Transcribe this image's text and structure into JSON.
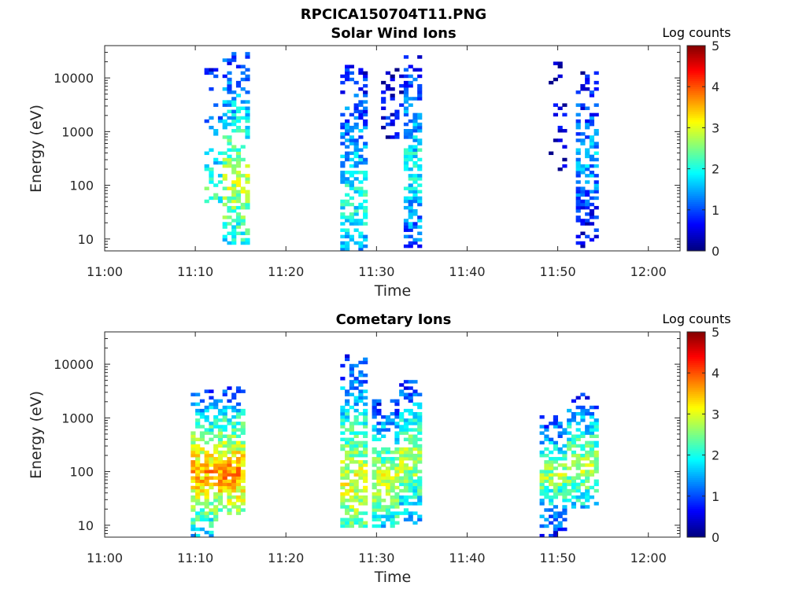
{
  "figure": {
    "title": "RPCICA150704T11.PNG"
  },
  "colorbar": {
    "range": [
      0,
      5
    ],
    "colormap": "jet"
  },
  "chart_data": [
    {
      "type": "heatmap",
      "title": "Solar Wind Ions",
      "xlabel": "Time",
      "ylabel": "Energy (eV)",
      "colorbar_title": "Log counts",
      "colorbar_ticks": [
        "0",
        "1",
        "2",
        "3",
        "4",
        "5"
      ],
      "x_ticks": [
        "11:00",
        "11:10",
        "11:20",
        "11:30",
        "11:40",
        "11:50",
        "12:00"
      ],
      "x_tick_minutes": [
        0,
        10,
        20,
        30,
        40,
        50,
        60
      ],
      "xlim_minutes": [
        0,
        63.5
      ],
      "y_scale": "log",
      "y_ticks": [
        "10",
        "100",
        "1000",
        "10000"
      ],
      "y_tick_values": [
        10,
        100,
        1000,
        10000
      ],
      "ylim": [
        6,
        40000
      ],
      "bursts": [
        {
          "t_start": 11.0,
          "t_end": 13.0,
          "e_min": 40,
          "e_max": 15000,
          "peak_e": 80,
          "peak_log": 2.2,
          "density": 0.35
        },
        {
          "t_start": 13.0,
          "t_end": 16.0,
          "e_min": 7,
          "e_max": 30000,
          "peak_e": 100,
          "peak_log": 2.8,
          "density": 0.6
        },
        {
          "t_start": 26.0,
          "t_end": 29.0,
          "e_min": 6,
          "e_max": 20000,
          "peak_e": 50,
          "peak_log": 2.0,
          "density": 0.6
        },
        {
          "t_start": 30.5,
          "t_end": 33.0,
          "e_min": 500,
          "e_max": 15000,
          "peak_e": 2000,
          "peak_log": 0.6,
          "density": 0.35
        },
        {
          "t_start": 33.0,
          "t_end": 35.0,
          "e_min": 6,
          "e_max": 25000,
          "peak_e": 200,
          "peak_log": 2.0,
          "density": 0.65
        },
        {
          "t_start": 49.0,
          "t_end": 51.0,
          "e_min": 70,
          "e_max": 20000,
          "peak_e": 2000,
          "peak_log": 0.5,
          "density": 0.2
        },
        {
          "t_start": 52.0,
          "t_end": 54.5,
          "e_min": 6,
          "e_max": 15000,
          "peak_e": 300,
          "peak_log": 1.5,
          "density": 0.6
        }
      ]
    },
    {
      "type": "heatmap",
      "title": "Cometary Ions",
      "xlabel": "Time",
      "ylabel": "Energy (eV)",
      "colorbar_title": "Log counts",
      "colorbar_ticks": [
        "0",
        "1",
        "2",
        "3",
        "4",
        "5"
      ],
      "x_ticks": [
        "11:00",
        "11:10",
        "11:20",
        "11:30",
        "11:40",
        "11:50",
        "12:00"
      ],
      "x_tick_minutes": [
        0,
        10,
        20,
        30,
        40,
        50,
        60
      ],
      "xlim_minutes": [
        0,
        63.5
      ],
      "y_scale": "log",
      "y_ticks": [
        "10",
        "100",
        "1000",
        "10000"
      ],
      "y_tick_values": [
        10,
        100,
        1000,
        10000
      ],
      "ylim": [
        6,
        40000
      ],
      "bursts": [
        {
          "t_start": 9.5,
          "t_end": 12.5,
          "e_min": 6,
          "e_max": 3000,
          "peak_e": 90,
          "peak_log": 3.6,
          "density": 0.85
        },
        {
          "t_start": 12.5,
          "t_end": 15.5,
          "e_min": 15,
          "e_max": 3500,
          "peak_e": 90,
          "peak_log": 3.7,
          "density": 0.85
        },
        {
          "t_start": 26.0,
          "t_end": 29.0,
          "e_min": 8,
          "e_max": 14000,
          "peak_e": 60,
          "peak_log": 3.0,
          "density": 0.8
        },
        {
          "t_start": 29.5,
          "t_end": 32.5,
          "e_min": 8,
          "e_max": 2000,
          "peak_e": 60,
          "peak_log": 3.0,
          "density": 0.8
        },
        {
          "t_start": 32.5,
          "t_end": 35.0,
          "e_min": 10,
          "e_max": 5000,
          "peak_e": 150,
          "peak_log": 2.9,
          "density": 0.8
        },
        {
          "t_start": 48.0,
          "t_end": 51.0,
          "e_min": 6,
          "e_max": 1000,
          "peak_e": 80,
          "peak_log": 2.7,
          "density": 0.75
        },
        {
          "t_start": 51.0,
          "t_end": 54.5,
          "e_min": 20,
          "e_max": 3000,
          "peak_e": 120,
          "peak_log": 2.8,
          "density": 0.75
        }
      ]
    }
  ]
}
